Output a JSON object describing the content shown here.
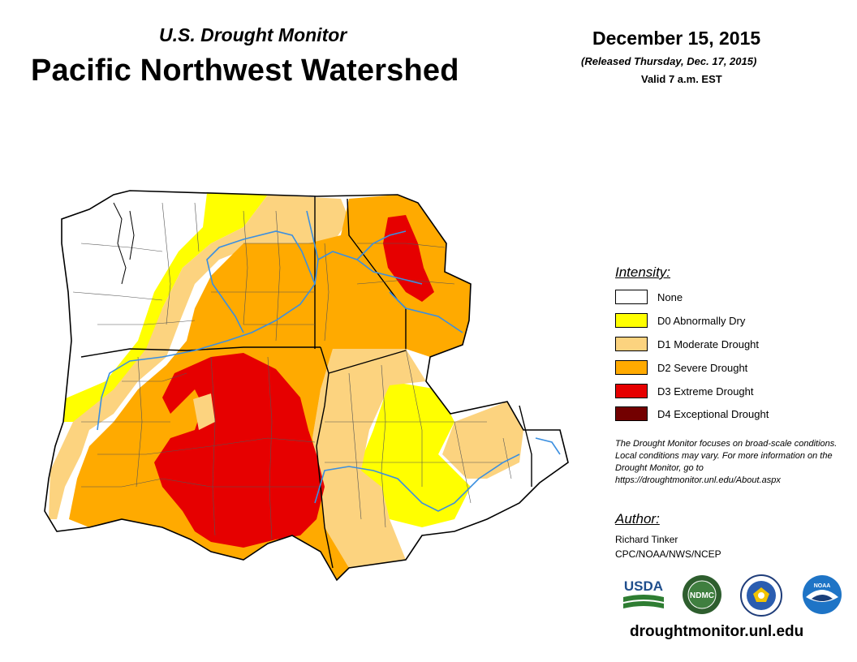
{
  "header": {
    "subtitle": "U.S. Drought Monitor",
    "title": "Pacific Northwest Watershed",
    "date": "December 15, 2015",
    "released": "(Released Thursday, Dec. 17, 2015)",
    "valid": "Valid 7 a.m. EST"
  },
  "legend": {
    "title": "Intensity:",
    "items": [
      {
        "label": "None",
        "color": "#ffffff"
      },
      {
        "label": "D0 Abnormally Dry",
        "color": "#ffff00"
      },
      {
        "label": "D1 Moderate Drought",
        "color": "#fcd37f"
      },
      {
        "label": "D2 Severe Drought",
        "color": "#ffaa00"
      },
      {
        "label": "D3 Extreme Drought",
        "color": "#e60000"
      },
      {
        "label": "D4 Exceptional Drought",
        "color": "#730000"
      }
    ]
  },
  "note": "The Drought Monitor focuses on broad-scale conditions. Local conditions may vary. For more information on the Drought Monitor, go to https://droughtmonitor.unl.edu/About.aspx",
  "author": {
    "title": "Author:",
    "name": "Richard Tinker",
    "org": "CPC/NOAA/NWS/NCEP"
  },
  "logos": {
    "usda": "USDA",
    "ndmc": "NDMC",
    "noaa": "NOAA"
  },
  "site": "droughtmonitor.unl.edu",
  "colors": {
    "river": "#3b8fe0",
    "boundary": "#555555",
    "state_boundary": "#000000"
  }
}
